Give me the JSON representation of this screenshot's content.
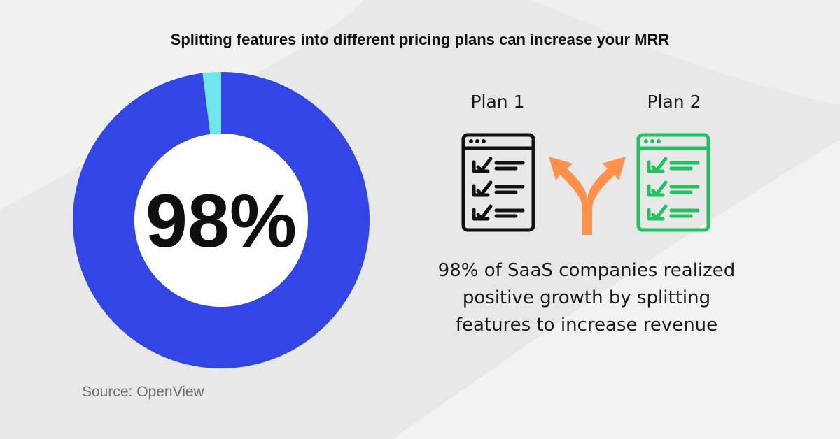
{
  "header": {
    "title": "Splitting features into different pricing plans can increase your MRR"
  },
  "chart_data": {
    "type": "pie",
    "variant": "donut",
    "categories": [
      "",
      ""
    ],
    "values": [
      98,
      2
    ],
    "center_label": "98%",
    "colors": [
      "#3146e4",
      "#6ee6ec"
    ]
  },
  "plans": [
    {
      "label": "Plan 1",
      "icon": "checklist-icon",
      "color": "#111111"
    },
    {
      "label": "Plan 2",
      "icon": "checklist-icon",
      "color": "#22c25e"
    }
  ],
  "split_arrow": {
    "icon": "split-arrow-icon",
    "color": "#ff914d"
  },
  "caption": {
    "lines": [
      "98% of SaaS companies realized",
      "positive growth by splitting",
      "features to increase revenue"
    ]
  },
  "source": "Source: OpenView"
}
